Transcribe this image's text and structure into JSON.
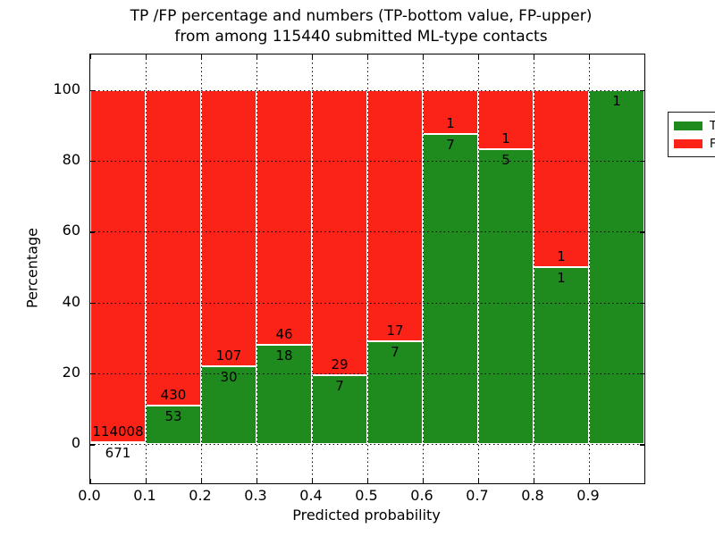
{
  "title": {
    "line1": "TP /FP percentage and numbers (TP-bottom value, FP-upper)",
    "line2": "from among 115440 submitted ML-type contacts"
  },
  "chart_data": {
    "type": "bar",
    "stacked": true,
    "normalized": "each bin scaled to 100%",
    "title": "TP /FP percentage and numbers (TP-bottom value, FP-upper)\nfrom among 115440 submitted ML-type contacts",
    "xlabel": "Predicted probability",
    "ylabel": "Percentage",
    "x_ticks": [
      "0.0",
      "0.1",
      "0.2",
      "0.3",
      "0.4",
      "0.5",
      "0.6",
      "0.7",
      "0.8",
      "0.9"
    ],
    "y_ticks": [
      "0",
      "20",
      "40",
      "60",
      "80",
      "100"
    ],
    "y_tick_values": [
      0,
      20,
      40,
      60,
      80,
      100
    ],
    "xlim": [
      0.0,
      1.0
    ],
    "ylim": [
      -11,
      110
    ],
    "grid": "dotted black, over bars",
    "legend_position": "upper right",
    "total_contacts": 115440,
    "colors": {
      "tp": "#1f8b1f",
      "fp": "#fb2218"
    },
    "legend": [
      {
        "label": "TP",
        "color": "#1f8b1f"
      },
      {
        "label": "FP",
        "color": "#fb2218"
      }
    ],
    "bins": [
      {
        "x0": 0.0,
        "x1": 0.1,
        "tp_count": "671",
        "fp_count": "114008",
        "tp_pct": 0.59,
        "fp_pct": 99.41
      },
      {
        "x0": 0.1,
        "x1": 0.2,
        "tp_count": "53",
        "fp_count": "430",
        "tp_pct": 10.97,
        "fp_pct": 89.03
      },
      {
        "x0": 0.2,
        "x1": 0.3,
        "tp_count": "30",
        "fp_count": "107",
        "tp_pct": 21.9,
        "fp_pct": 78.1
      },
      {
        "x0": 0.3,
        "x1": 0.4,
        "tp_count": "18",
        "fp_count": "46",
        "tp_pct": 28.13,
        "fp_pct": 71.87
      },
      {
        "x0": 0.4,
        "x1": 0.5,
        "tp_count": "7",
        "fp_count": "29",
        "tp_pct": 19.44,
        "fp_pct": 80.56
      },
      {
        "x0": 0.5,
        "x1": 0.6,
        "tp_count": "7",
        "fp_count": "17",
        "tp_pct": 29.17,
        "fp_pct": 70.83
      },
      {
        "x0": 0.6,
        "x1": 0.7,
        "tp_count": "7",
        "fp_count": "1",
        "tp_pct": 87.5,
        "fp_pct": 12.5
      },
      {
        "x0": 0.7,
        "x1": 0.8,
        "tp_count": "5",
        "fp_count": "1",
        "tp_pct": 83.33,
        "fp_pct": 16.67
      },
      {
        "x0": 0.8,
        "x1": 0.9,
        "tp_count": "1",
        "fp_count": "1",
        "tp_pct": 50.0,
        "fp_pct": 50.0
      },
      {
        "x0": 0.9,
        "x1": 1.0,
        "tp_count": "1",
        "fp_count": null,
        "tp_pct": 100.0,
        "fp_pct": 0.0
      }
    ]
  }
}
